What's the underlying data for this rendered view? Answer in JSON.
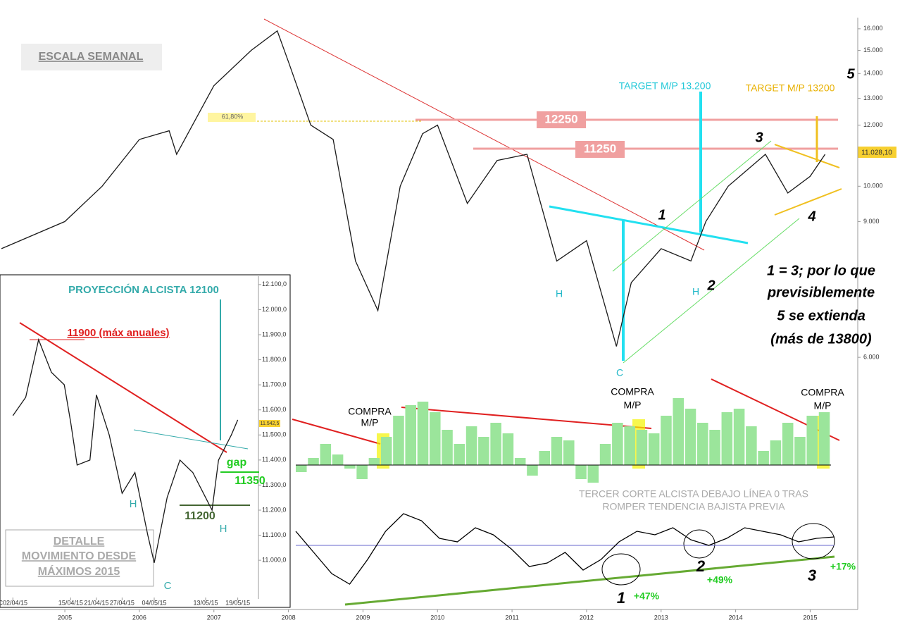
{
  "chart_data": [
    {
      "type": "line",
      "title": "ESCALA SEMANAL",
      "color": "#1a1a1a",
      "log_scale": true,
      "x": [
        2004.15,
        2005.0,
        2005.5,
        2006.0,
        2006.4,
        2006.5,
        2007.0,
        2007.5,
        2007.85,
        2008.0,
        2008.3,
        2008.6,
        2008.9,
        2009.2,
        2009.5,
        2009.8,
        2010.0,
        2010.4,
        2010.8,
        2011.2,
        2011.6,
        2012.0,
        2012.4,
        2012.6,
        2013.0,
        2013.4,
        2013.6,
        2013.9,
        2014.4,
        2014.7,
        2015.0,
        2015.2
      ],
      "values": [
        8300,
        9000,
        10000,
        11500,
        11800,
        11000,
        13500,
        15000,
        15900,
        14500,
        12000,
        11500,
        8000,
        6900,
        10000,
        11700,
        12000,
        9500,
        10800,
        11000,
        8000,
        8500,
        6200,
        7500,
        8300,
        8000,
        9000,
        10000,
        11000,
        9800,
        10300,
        11000
      ],
      "xlim": [
        2004.13,
        2015.61
      ],
      "xticks": [
        2005,
        2006,
        2007,
        2008,
        2009,
        2010,
        2011,
        2012,
        2013,
        2014,
        2015
      ],
      "ylim": [
        5840,
        16370
      ],
      "yticks": [
        {
          "value": 16000,
          "label": "16.000"
        },
        {
          "value": 15000,
          "label": "15.000"
        },
        {
          "value": 14000,
          "label": "14.000"
        },
        {
          "value": 13000,
          "label": "13.000"
        },
        {
          "value": 12000,
          "label": "12.000"
        },
        {
          "value": 10000,
          "label": "10.000"
        },
        {
          "value": 9000,
          "label": "9.000"
        },
        {
          "value": 6000,
          "label": "6.000"
        }
      ],
      "annotations": [
        "61,80%",
        "12250",
        "11250",
        "TARGET M/P 13.200",
        "TARGET M/P 13200",
        "5",
        "3",
        "1",
        "4",
        "2",
        "H",
        "H",
        "C",
        "1 = 3; por lo que",
        "previsiblemente",
        "5 se extienda",
        "(más de 13800)",
        "11.028,10"
      ]
    },
    {
      "type": "line",
      "color": "#1a1a1a",
      "x": [
        0,
        2,
        4,
        6,
        8,
        9,
        10,
        12,
        13,
        15,
        17,
        19,
        21,
        22,
        24,
        26,
        28,
        30,
        31,
        32,
        34,
        35
      ],
      "values": [
        11577,
        11650,
        11880,
        11750,
        11700,
        11550,
        11380,
        11400,
        11660,
        11500,
        11267,
        11350,
        11100,
        10990,
        11250,
        11400,
        11350,
        11250,
        11200,
        11400,
        11500,
        11560
      ],
      "xlim": [
        -2,
        38
      ],
      "xticks": [
        {
          "value": 0,
          "label": "C02/04/15"
        },
        {
          "value": 9,
          "label": "15/04/15"
        },
        {
          "value": 13,
          "label": "21/04/15"
        },
        {
          "value": 17,
          "label": "27/04/15"
        },
        {
          "value": 22,
          "label": "04/05/15"
        },
        {
          "value": 30,
          "label": "13/05/15"
        },
        {
          "value": 35,
          "label": "19/05/15"
        }
      ],
      "ylim": [
        10812,
        12139
      ],
      "yticks": [
        {
          "value": 12100,
          "label": "12.100,0"
        },
        {
          "value": 12000,
          "label": "12.000,0"
        },
        {
          "value": 11900,
          "label": "11.900,0"
        },
        {
          "value": 11800,
          "label": "11.800,0"
        },
        {
          "value": 11700,
          "label": "11.700,0"
        },
        {
          "value": 11600,
          "label": "11.600,0"
        },
        {
          "value": 11500,
          "label": "11.500,0"
        },
        {
          "value": 11400,
          "label": "11.400,0"
        },
        {
          "value": 11300,
          "label": "11.300,0"
        },
        {
          "value": 11200,
          "label": "11.200,0"
        },
        {
          "value": 11100,
          "label": "11.100,0"
        },
        {
          "value": 11000,
          "label": "11.000,0"
        }
      ],
      "annotations": [
        "PROYECCIÓN ALCISTA 12100",
        "11900 (máx anuales)",
        "gap",
        "11350",
        "11200",
        "H",
        "H",
        "C",
        "DETALLE",
        "MOVIMIENTO DESDE",
        "MÁXIMOS 2015",
        "11.542,5"
      ]
    },
    {
      "type": "bar",
      "color": "#9be59b",
      "ylim": [
        -30,
        100
      ],
      "values": [
        -10,
        10,
        30,
        15,
        -5,
        -20,
        10,
        40,
        70,
        85,
        90,
        75,
        50,
        30,
        55,
        40,
        60,
        45,
        10,
        -15,
        20,
        40,
        35,
        -20,
        -25,
        30,
        60,
        55,
        50,
        45,
        70,
        95,
        80,
        60,
        50,
        75,
        80,
        55,
        20,
        35,
        60,
        40,
        70,
        75
      ],
      "annotations": [
        "COMPRA",
        "M/P",
        "COMPRA",
        "M/P",
        "COMPRA",
        "M/P"
      ]
    },
    {
      "type": "line",
      "color": "#000000",
      "ylim": [
        -60,
        60
      ],
      "values": [
        20,
        -10,
        -40,
        -55,
        -20,
        20,
        45,
        35,
        10,
        5,
        25,
        15,
        -5,
        -30,
        -25,
        -10,
        -35,
        -20,
        5,
        20,
        15,
        25,
        8,
        0,
        10,
        25,
        20,
        15,
        5,
        10,
        12
      ],
      "annotations": [
        "TERCER CORTE ALCISTA DEBAJO LÍNEA 0 TRAS",
        "ROMPER TENDENCIA BAJISTA PREVIA",
        "1",
        "+47%",
        "2",
        "+49%",
        "3",
        "+17%"
      ]
    }
  ]
}
